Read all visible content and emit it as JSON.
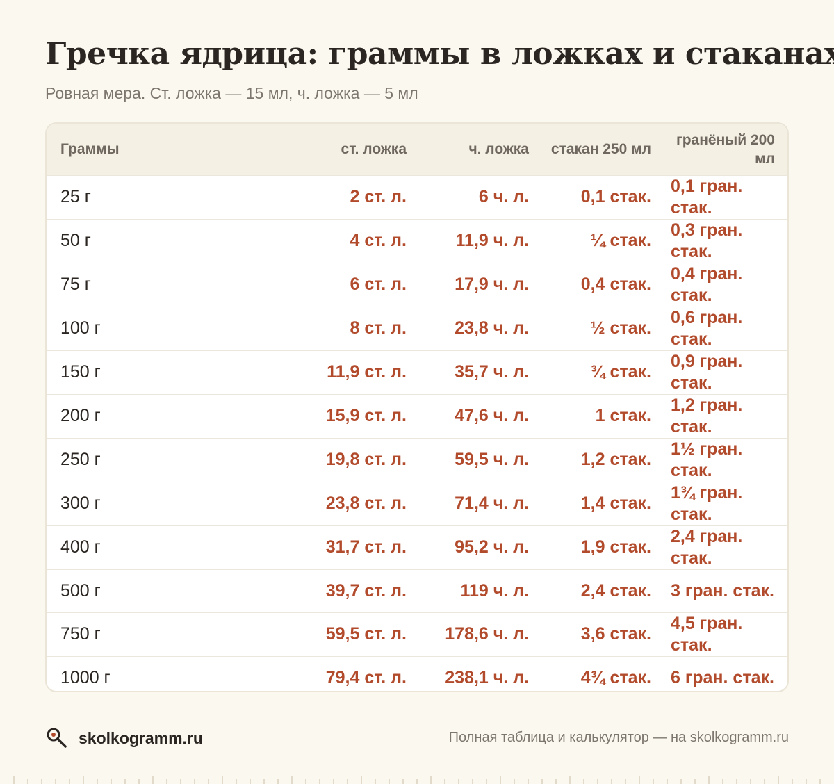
{
  "header": {
    "title": "Гречка ядрица: граммы в ложках и стаканах",
    "subtitle": "Ровная мера. Ст. ложка — 15 мл, ч. ложка — 5 мл"
  },
  "table": {
    "columns": [
      "Граммы",
      "ст. ложка",
      "ч. ложка",
      "стакан 250 мл",
      "гранёный 200 мл"
    ],
    "rows": [
      [
        "25 г",
        "2 ст. л.",
        "6 ч. л.",
        "0,1 стак.",
        "0,1 гран. стак."
      ],
      [
        "50 г",
        "4 ст. л.",
        "11,9 ч. л.",
        "¼ стак.",
        "0,3 гран. стак."
      ],
      [
        "75 г",
        "6 ст. л.",
        "17,9 ч. л.",
        "0,4 стак.",
        "0,4 гран. стак."
      ],
      [
        "100 г",
        "8 ст. л.",
        "23,8 ч. л.",
        "½ стак.",
        "0,6 гран. стак."
      ],
      [
        "150 г",
        "11,9 ст. л.",
        "35,7 ч. л.",
        "¾ стак.",
        "0,9 гран. стак."
      ],
      [
        "200 г",
        "15,9 ст. л.",
        "47,6 ч. л.",
        "1 стак.",
        "1,2 гран. стак."
      ],
      [
        "250 г",
        "19,8 ст. л.",
        "59,5 ч. л.",
        "1,2 стак.",
        "1½ гран. стак."
      ],
      [
        "300 г",
        "23,8 ст. л.",
        "71,4 ч. л.",
        "1,4 стак.",
        "1¾ гран. стак."
      ],
      [
        "400 г",
        "31,7 ст. л.",
        "95,2 ч. л.",
        "1,9 стак.",
        "2,4 гран. стак."
      ],
      [
        "500 г",
        "39,7 ст. л.",
        "119 ч. л.",
        "2,4 стак.",
        "3 гран. стак."
      ],
      [
        "750 г",
        "59,5 ст. л.",
        "178,6 ч. л.",
        "3,6 стак.",
        "4,5 гран. стак."
      ],
      [
        "1000 г",
        "79,4 ст. л.",
        "238,1 ч. л.",
        "4¾ стак.",
        "6 гран. стак."
      ]
    ]
  },
  "footer": {
    "brand": "skolkogramm.ru",
    "brand_icon": "magnifier-icon",
    "note": "Полная таблица и калькулятор — на skolkogramm.ru"
  },
  "colors": {
    "accent": "#b24a2c",
    "background": "#fbf8f0",
    "header_row": "#f5f0e4"
  }
}
